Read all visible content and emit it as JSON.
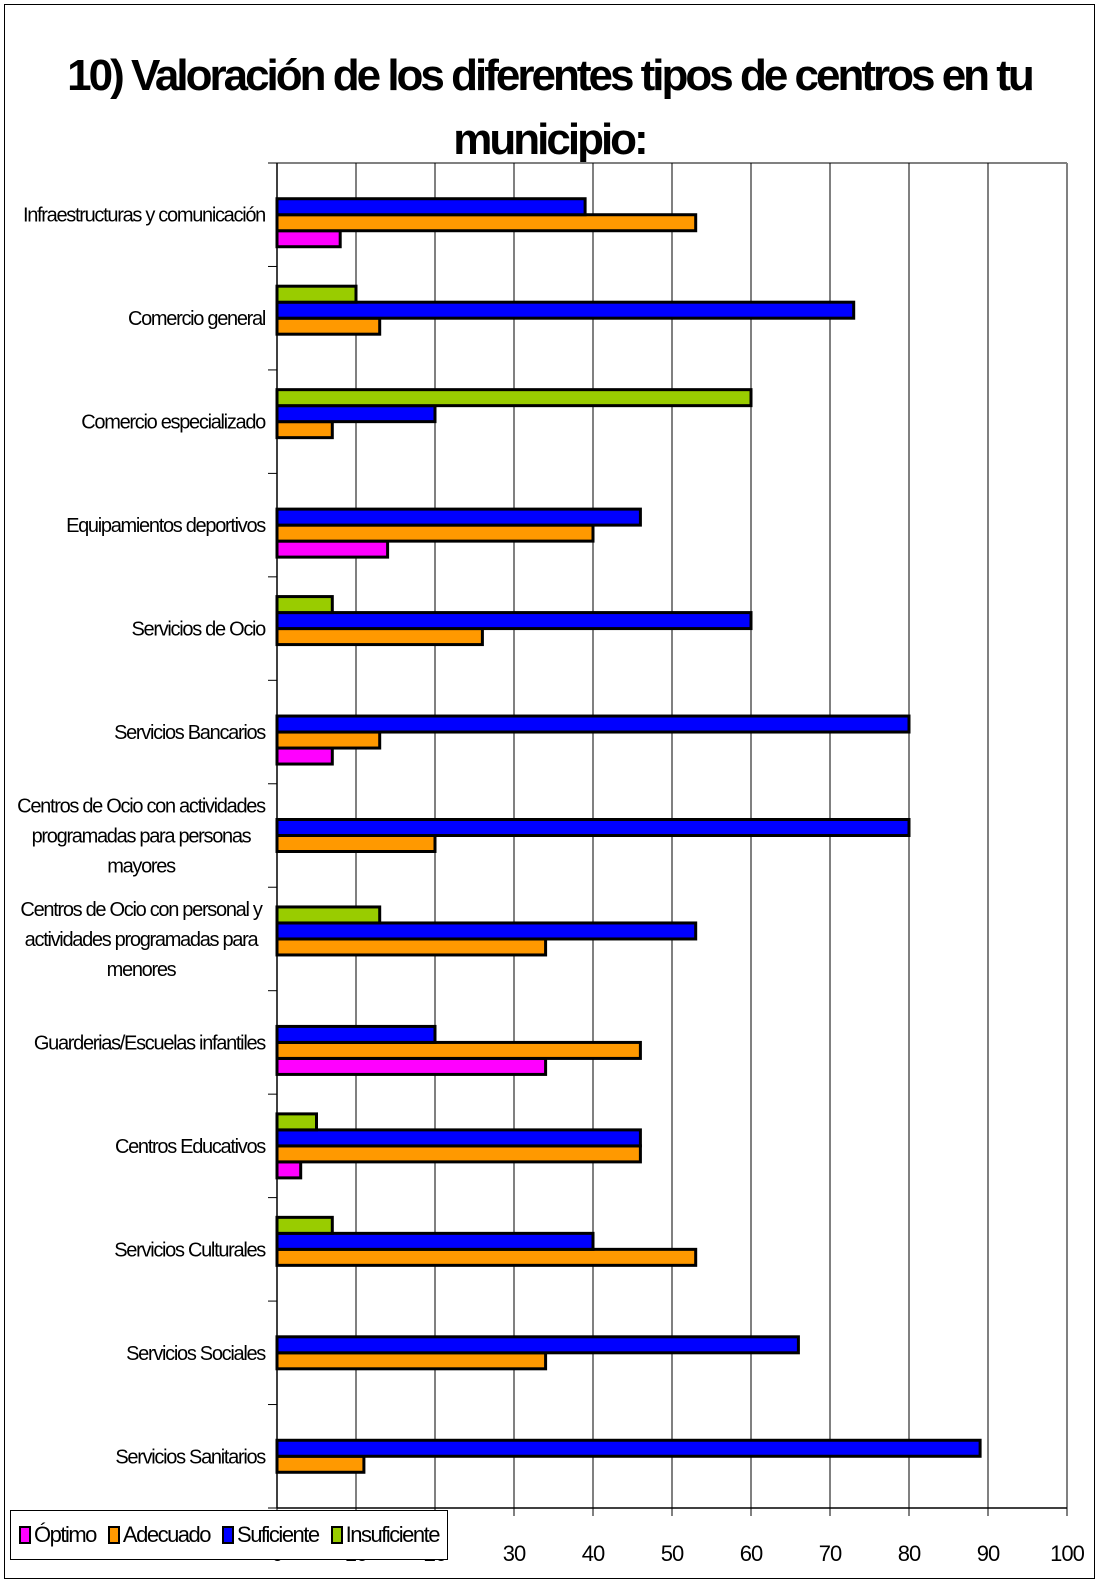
{
  "chart_data": {
    "type": "bar",
    "orientation": "horizontal",
    "title": "10) Valoración de los diferentes tipos de centros en tu municipio:",
    "categories": [
      "Infraestructuras y comunicación",
      "Comercio general",
      "Comercio especializado",
      "Equipamientos deportivos",
      "Servicios de Ocio",
      "Servicios Bancarios",
      "Centros de Ocio con actividades programadas para personas mayores",
      "Centros de Ocio con personal y actividades programadas para menores",
      "Guarderias/Escuelas infantiles",
      "Centros Educativos",
      "Servicios Culturales",
      "Servicios Sociales",
      "Servicios Sanitarios"
    ],
    "series": [
      {
        "name": "Óptimo",
        "color": "#FF00FF",
        "values": [
          8,
          0,
          0,
          14,
          0,
          7,
          0,
          0,
          34,
          3,
          0,
          0,
          0
        ]
      },
      {
        "name": "Adecuado",
        "color": "#FF9900",
        "values": [
          53,
          13,
          7,
          40,
          26,
          13,
          20,
          34,
          46,
          46,
          53,
          34,
          11
        ]
      },
      {
        "name": "Suficiente",
        "color": "#0000FF",
        "values": [
          39,
          73,
          20,
          46,
          60,
          80,
          80,
          53,
          20,
          46,
          40,
          66,
          89
        ]
      },
      {
        "name": "Insuficiente",
        "color": "#99CC00",
        "values": [
          0,
          10,
          60,
          0,
          7,
          0,
          0,
          13,
          0,
          5,
          7,
          0,
          0
        ]
      }
    ],
    "xlim": [
      0,
      100
    ],
    "xticks": [
      0,
      10,
      20,
      30,
      40,
      50,
      60,
      70,
      80,
      90,
      100
    ],
    "grid": "vertical",
    "legend": "bottom-left"
  }
}
